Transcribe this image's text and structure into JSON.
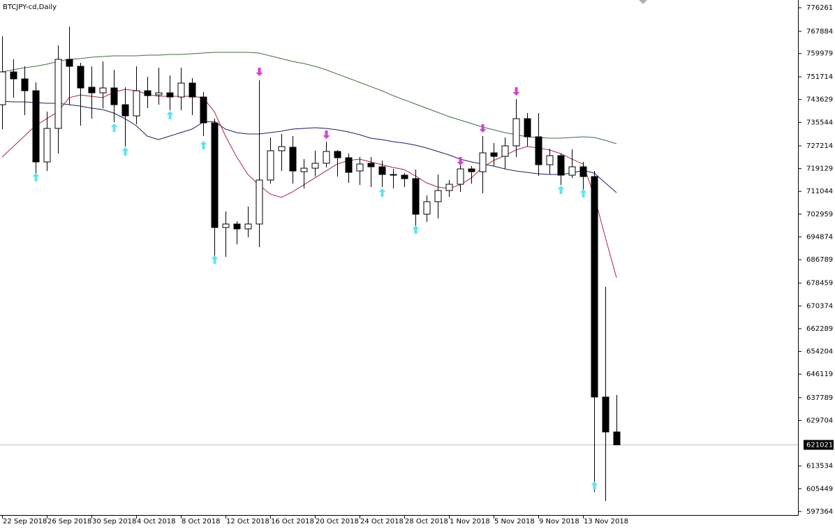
{
  "chart_data": {
    "type": "candlestick",
    "title": "BTCJPY-cd,Daily",
    "categories": [
      "22 Sep 2018",
      null,
      null,
      null,
      "26 Sep 2018",
      null,
      null,
      null,
      "30 Sep 2018",
      null,
      null,
      null,
      "4 Oct 2018",
      null,
      null,
      null,
      "8 Oct 2018",
      null,
      null,
      null,
      "12 Oct 2018",
      null,
      null,
      null,
      "16 Oct 2018",
      null,
      null,
      null,
      "20 Oct 2018",
      null,
      null,
      null,
      "24 Oct 2018",
      null,
      null,
      null,
      "28 Oct 2018",
      null,
      null,
      null,
      "1 Nov 2018",
      null,
      null,
      null,
      "5 Nov 2018",
      null,
      null,
      null,
      "9 Nov 2018",
      null,
      null,
      null,
      "13 Nov 2018",
      null,
      null,
      null
    ],
    "open": [
      741820,
      753470,
      750990,
      746780,
      721500,
      733400,
      757930,
      755450,
      748010,
      746030,
      747770,
      741820,
      737860,
      746780,
      745290,
      746030,
      744550,
      749500,
      744550,
      735380,
      698210,
      699450,
      697720,
      699450,
      715060,
      725470,
      726710,
      718030,
      719270,
      721010,
      725220,
      722990,
      718280,
      721010,
      719770,
      717040,
      716790,
      715560,
      702920,
      707380,
      711340,
      713570,
      719020,
      718030,
      724720,
      723480,
      727200,
      736860,
      730420,
      720510,
      723730,
      716790,
      719770,
      716300,
      638000,
      625610
    ],
    "high": [
      766100,
      757930,
      755450,
      749750,
      739340,
      762880,
      769570,
      756690,
      755450,
      757180,
      754210,
      748010,
      755450,
      751730,
      754950,
      752230,
      754950,
      751240,
      746280,
      736860,
      703910,
      700440,
      705640,
      750490,
      730170,
      731410,
      730670,
      722490,
      725470,
      728690,
      725710,
      724480,
      723240,
      723240,
      722000,
      719020,
      717540,
      718780,
      709610,
      717040,
      715060,
      720260,
      720020,
      730670,
      728190,
      730170,
      743800,
      738850,
      738850,
      726210,
      724480,
      725960,
      721500,
      718280,
      677150,
      638740
    ],
    "low": [
      733150,
      744300,
      738100,
      715060,
      718280,
      724480,
      741820,
      734390,
      736860,
      740580,
      735630,
      726950,
      734880,
      740580,
      741820,
      739840,
      739840,
      738100,
      730670,
      686570,
      687800,
      692260,
      694740,
      691270,
      713820,
      718280,
      713820,
      712090,
      716300,
      719520,
      716300,
      714070,
      713330,
      712580,
      712580,
      712090,
      712580,
      696480,
      700190,
      701430,
      709110,
      710850,
      713820,
      710350,
      720020,
      719020,
      723240,
      726950,
      716550,
      717040,
      713330,
      715810,
      709110,
      604300,
      601080,
      621021
    ],
    "close": [
      753470,
      750990,
      746780,
      721500,
      733400,
      757930,
      755450,
      747770,
      746030,
      747770,
      741820,
      737860,
      746780,
      745040,
      746030,
      744550,
      749500,
      744550,
      735380,
      698210,
      699450,
      697720,
      699450,
      715060,
      725470,
      726950,
      718280,
      719270,
      721010,
      725220,
      722990,
      717790,
      720760,
      719770,
      717040,
      716790,
      715560,
      702920,
      707380,
      711340,
      713570,
      719020,
      718030,
      724720,
      723480,
      727200,
      736860,
      730420,
      720510,
      723730,
      716790,
      719770,
      716300,
      638000,
      625610,
      621021
    ],
    "ma_lines": [
      {
        "color": "#3f6e3f",
        "values": [
          753470,
          754210,
          754950,
          755450,
          756190,
          757180,
          757930,
          758180,
          758670,
          758920,
          759170,
          759170,
          759170,
          759410,
          759410,
          759660,
          759660,
          759910,
          760160,
          760400,
          760400,
          760400,
          760400,
          760160,
          759170,
          758180,
          757180,
          756440,
          755450,
          754210,
          752720,
          751240,
          749750,
          748260,
          746780,
          745040,
          743550,
          742070,
          740580,
          739100,
          737610,
          736370,
          735130,
          733890,
          732900,
          731910,
          731170,
          730420,
          730170,
          729930,
          729930,
          730170,
          730420,
          730170,
          729180,
          727950
        ]
      },
      {
        "color": "#1c1c6e",
        "values": [
          743060,
          742810,
          742810,
          742560,
          742320,
          742320,
          741820,
          741330,
          740580,
          740090,
          738850,
          736860,
          734390,
          730670,
          729430,
          730670,
          731910,
          733150,
          735630,
          735870,
          733150,
          731910,
          731420,
          731420,
          731910,
          732400,
          733150,
          733400,
          733640,
          733400,
          732900,
          732160,
          731170,
          729930,
          729430,
          728690,
          728190,
          727450,
          726460,
          725220,
          723980,
          722490,
          721500,
          720760,
          720020,
          719020,
          718280,
          717790,
          717290,
          717040,
          717040,
          717540,
          718530,
          717540,
          714070,
          710600
        ]
      },
      {
        "color": "#a8283a",
        "values": [
          723240,
          726950,
          730670,
          734390,
          736860,
          739340,
          744300,
          745290,
          744790,
          744300,
          746280,
          747270,
          746780,
          745540,
          744790,
          744790,
          744790,
          744790,
          744300,
          739340,
          730670,
          723240,
          717040,
          713330,
          710110,
          708870,
          710850,
          713330,
          715810,
          718290,
          720770,
          722000,
          722500,
          721500,
          720510,
          719520,
          718780,
          716540,
          714070,
          712580,
          712090,
          713330,
          715810,
          719520,
          722000,
          723730,
          725720,
          726950,
          726460,
          725720,
          724480,
          722500,
          720770,
          709610,
          694740,
          680370
        ]
      }
    ],
    "up_arrows": {
      "color": "#5fe3ee",
      "values": [
        null,
        null,
        null,
        716060,
        null,
        null,
        null,
        null,
        null,
        null,
        733640,
        725220,
        null,
        null,
        null,
        738100,
        null,
        null,
        727450,
        686810,
        null,
        null,
        null,
        null,
        null,
        null,
        null,
        null,
        null,
        null,
        null,
        null,
        null,
        null,
        710600,
        null,
        null,
        697470,
        null,
        null,
        null,
        null,
        null,
        null,
        null,
        null,
        null,
        null,
        null,
        null,
        711590,
        null,
        710350,
        606510,
        null,
        null
      ]
    },
    "down_arrows": {
      "color": "#d63ed6",
      "values": [
        null,
        null,
        null,
        null,
        null,
        null,
        null,
        null,
        null,
        null,
        null,
        null,
        null,
        null,
        null,
        null,
        null,
        null,
        null,
        null,
        null,
        null,
        null,
        753470,
        null,
        null,
        null,
        null,
        null,
        731170,
        null,
        null,
        null,
        null,
        null,
        null,
        null,
        null,
        null,
        null,
        null,
        721750,
        null,
        733400,
        null,
        null,
        746530,
        null,
        null,
        null,
        null,
        null,
        null,
        null,
        null,
        null
      ]
    },
    "price_line": 621021,
    "ylim": [
      596100,
      779000
    ],
    "yticks": [
      776261,
      767884,
      759979,
      751714,
      743629,
      735544,
      727214,
      719129,
      711044,
      702959,
      694874,
      686789,
      678459,
      670374,
      662289,
      654204,
      646119,
      637789,
      629704,
      613534,
      605449,
      597364
    ]
  }
}
